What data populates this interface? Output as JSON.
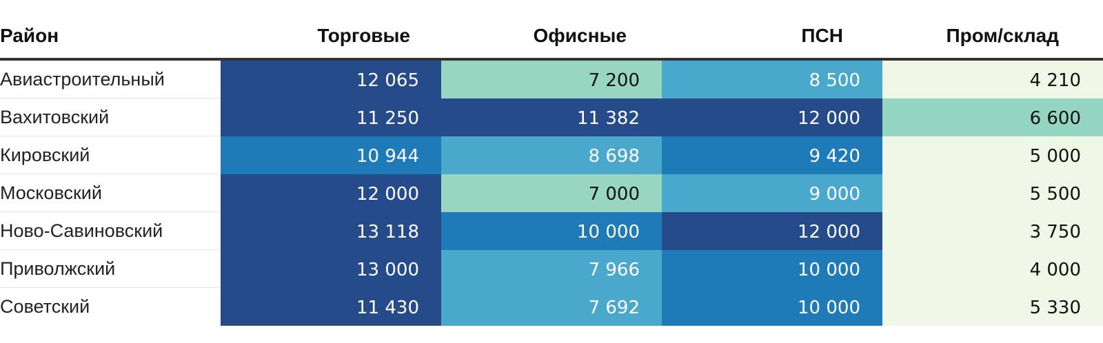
{
  "chart_data": {
    "type": "table",
    "columns": [
      "Район",
      "Торговые",
      "Офисные",
      "ПСН",
      "Пром/склад"
    ],
    "rows": [
      {
        "label": "Авиастроительный",
        "values": [
          "12 065",
          "7 200",
          "8 500",
          "4 210"
        ]
      },
      {
        "label": "Вахитовский",
        "values": [
          "11 250",
          "11 382",
          "12 000",
          "6 600"
        ]
      },
      {
        "label": "Кировский",
        "values": [
          "10 944",
          "8 698",
          "9 420",
          "5 000"
        ]
      },
      {
        "label": "Московский",
        "values": [
          "12 000",
          "7 000",
          "9 000",
          "5 500"
        ]
      },
      {
        "label": "Ново-Савиновский",
        "values": [
          "13 118",
          "10 000",
          "12 000",
          "3 750"
        ]
      },
      {
        "label": "Приволжский",
        "values": [
          "13 000",
          "7 966",
          "10 000",
          "4 000"
        ]
      },
      {
        "label": "Советский",
        "values": [
          "11 430",
          "7 692",
          "10 000",
          "5 330"
        ]
      }
    ],
    "cell_colors": [
      [
        "#254b8b",
        "#98d6c2",
        "#4aa8cc",
        "#eff8e6"
      ],
      [
        "#254b8b",
        "#254b8b",
        "#254b8b",
        "#93d5c0"
      ],
      [
        "#1f7ab8",
        "#4aa8cc",
        "#1f7ab8",
        "#eff8e6"
      ],
      [
        "#254b8b",
        "#98d6c2",
        "#4aa8cc",
        "#eff8e6"
      ],
      [
        "#254b8b",
        "#1f7ab8",
        "#254b8b",
        "#eff8e6"
      ],
      [
        "#254b8b",
        "#4aa8cc",
        "#1f7ab8",
        "#eff8e6"
      ],
      [
        "#254b8b",
        "#4aa8cc",
        "#1f7ab8",
        "#eff8e6"
      ]
    ],
    "text_colors": [
      [
        "#ffffff",
        "#111111",
        "#ffffff",
        "#111111"
      ],
      [
        "#ffffff",
        "#ffffff",
        "#ffffff",
        "#111111"
      ],
      [
        "#ffffff",
        "#ffffff",
        "#ffffff",
        "#111111"
      ],
      [
        "#ffffff",
        "#111111",
        "#ffffff",
        "#111111"
      ],
      [
        "#ffffff",
        "#ffffff",
        "#ffffff",
        "#111111"
      ],
      [
        "#ffffff",
        "#ffffff",
        "#ffffff",
        "#111111"
      ],
      [
        "#ffffff",
        "#ffffff",
        "#ffffff",
        "#111111"
      ]
    ]
  }
}
